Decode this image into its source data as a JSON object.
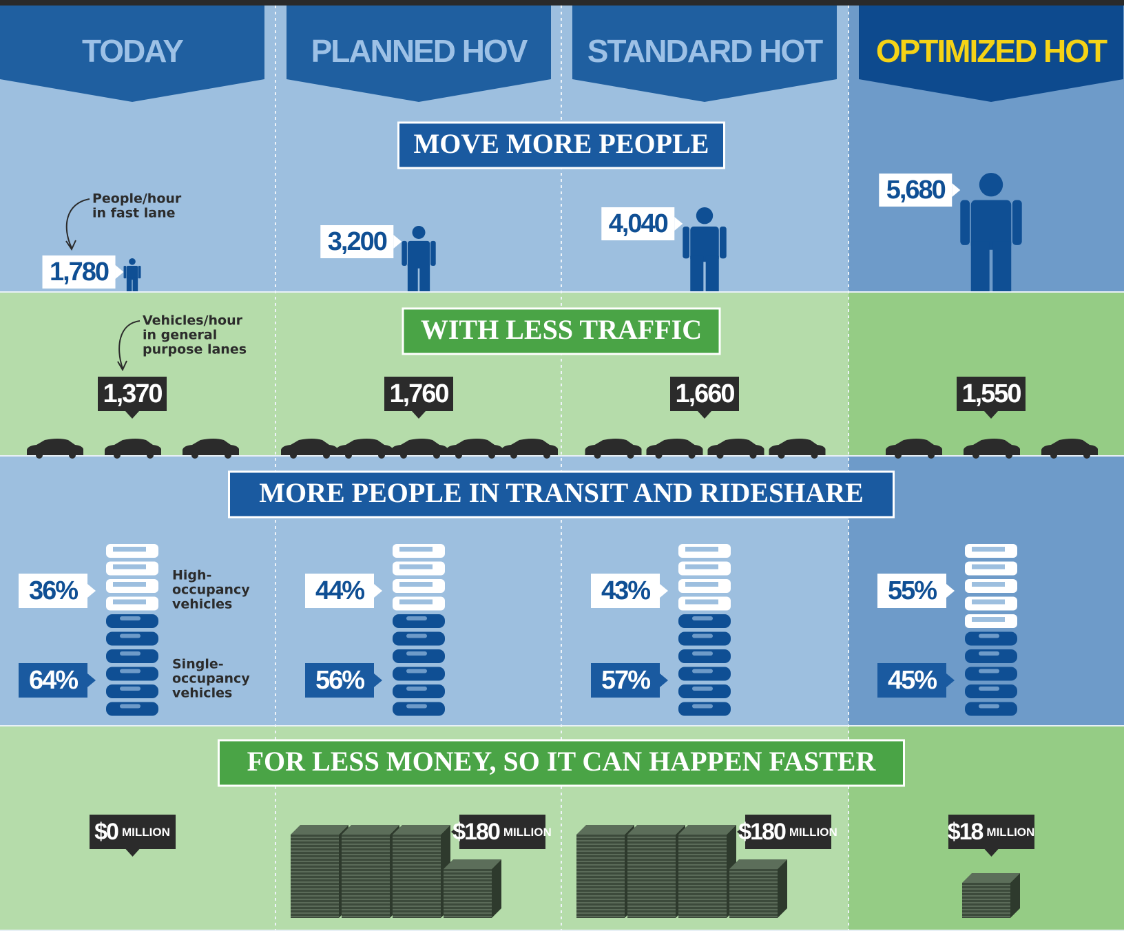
{
  "columns": [
    "TODAY",
    "PLANNED HOV",
    "STANDARD HOT",
    "OPTIMIZED HOT"
  ],
  "people": {
    "title": "MOVE MORE PEOPLE",
    "note": [
      "People/hour",
      "in fast lane"
    ],
    "values": [
      "1,780",
      "3,200",
      "4,040",
      "5,680"
    ]
  },
  "traffic": {
    "title": "WITH LESS TRAFFIC",
    "note": [
      "Vehicles/hour",
      "in general",
      "purpose lanes"
    ],
    "values": [
      "1,370",
      "1,760",
      "1,660",
      "1,550"
    ]
  },
  "transit": {
    "title": "MORE PEOPLE IN TRANSIT AND RIDESHARE",
    "hov_label": [
      "High-",
      "occupancy",
      "vehicles"
    ],
    "sov_label": [
      "Single-",
      "occupancy",
      "vehicles"
    ],
    "hov": [
      "36%",
      "44%",
      "43%",
      "55%"
    ],
    "sov": [
      "64%",
      "56%",
      "57%",
      "45%"
    ]
  },
  "cost": {
    "title": "FOR LESS MONEY, SO IT CAN HAPPEN FASTER",
    "amounts": [
      "$0",
      "$180",
      "$180",
      "$18"
    ],
    "unit": "MILLION"
  }
}
